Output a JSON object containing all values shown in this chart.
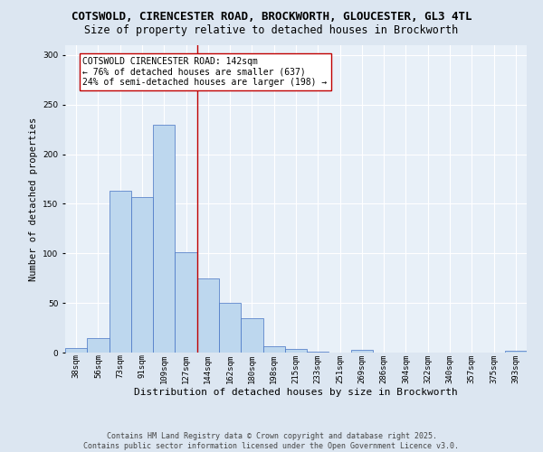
{
  "title": "COTSWOLD, CIRENCESTER ROAD, BROCKWORTH, GLOUCESTER, GL3 4TL",
  "subtitle": "Size of property relative to detached houses in Brockworth",
  "xlabel": "Distribution of detached houses by size in Brockworth",
  "ylabel": "Number of detached properties",
  "categories": [
    "38sqm",
    "56sqm",
    "73sqm",
    "91sqm",
    "109sqm",
    "127sqm",
    "144sqm",
    "162sqm",
    "180sqm",
    "198sqm",
    "215sqm",
    "233sqm",
    "251sqm",
    "269sqm",
    "286sqm",
    "304sqm",
    "322sqm",
    "340sqm",
    "357sqm",
    "375sqm",
    "393sqm"
  ],
  "values": [
    5,
    15,
    163,
    157,
    230,
    101,
    75,
    50,
    35,
    6,
    4,
    1,
    0,
    3,
    0,
    0,
    0,
    0,
    0,
    0,
    2
  ],
  "bar_color": "#bdd7ee",
  "bar_edge_color": "#4472c4",
  "background_color": "#dce6f1",
  "plot_bg_color": "#e8f0f8",
  "vline_index": 6,
  "vline_color": "#c00000",
  "annotation_text": "COTSWOLD CIRENCESTER ROAD: 142sqm\n← 76% of detached houses are smaller (637)\n24% of semi-detached houses are larger (198) →",
  "annotation_box_color": "#ffffff",
  "annotation_box_edge": "#c00000",
  "footer_line1": "Contains HM Land Registry data © Crown copyright and database right 2025.",
  "footer_line2": "Contains public sector information licensed under the Open Government Licence v3.0.",
  "ylim": [
    0,
    310
  ],
  "title_fontsize": 9,
  "subtitle_fontsize": 8.5,
  "xlabel_fontsize": 8,
  "ylabel_fontsize": 7.5,
  "tick_fontsize": 6.5,
  "annotation_fontsize": 7,
  "footer_fontsize": 6
}
